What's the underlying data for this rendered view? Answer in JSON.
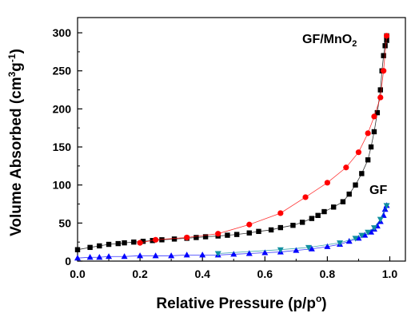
{
  "chart_data": {
    "type": "scatter",
    "xlabel_parts": [
      "Relative Pressure (p/p",
      "o",
      ")"
    ],
    "ylabel_parts": [
      "Volume Absorbed (cm",
      "3",
      "g",
      "-1",
      ")"
    ],
    "xlim": [
      0.0,
      1.05
    ],
    "ylim": [
      0,
      320
    ],
    "xticks": [
      "0.0",
      "0.2",
      "0.4",
      "0.6",
      "0.8",
      "1.0"
    ],
    "xtick_values": [
      0.0,
      0.2,
      0.4,
      0.6,
      0.8,
      1.0
    ],
    "yticks": [
      "0",
      "50",
      "100",
      "150",
      "200",
      "250",
      "300"
    ],
    "ytick_values": [
      0,
      50,
      100,
      150,
      200,
      250,
      300
    ],
    "grid": false,
    "annotations": [
      {
        "text_parts": [
          "GF/MnO",
          "2"
        ],
        "anchor": [
          0.99,
          296
        ]
      },
      {
        "text": "GF",
        "anchor": [
          0.99,
          82
        ]
      }
    ],
    "series": [
      {
        "color": "#000000",
        "marker": "square",
        "x": [
          0.0,
          0.04,
          0.07,
          0.1,
          0.13,
          0.15,
          0.18,
          0.21,
          0.24,
          0.27,
          0.31,
          0.35,
          0.38,
          0.41,
          0.45,
          0.48,
          0.51,
          0.55,
          0.58,
          0.62,
          0.65,
          0.69,
          0.72,
          0.75,
          0.77,
          0.79,
          0.82,
          0.85,
          0.87,
          0.89,
          0.91,
          0.93,
          0.94,
          0.95,
          0.96,
          0.97,
          0.975,
          0.98,
          0.985,
          0.99,
          0.99
        ],
        "y": [
          15,
          18,
          20,
          22,
          23,
          24,
          25,
          26,
          27,
          28,
          29,
          30,
          31,
          32,
          33,
          34,
          35,
          37,
          39,
          41,
          44,
          47,
          51,
          56,
          60,
          65,
          71,
          78,
          88,
          100,
          115,
          133,
          150,
          170,
          195,
          225,
          250,
          270,
          283,
          290,
          296
        ]
      },
      {
        "color": "#ff0000",
        "marker": "circle",
        "x": [
          0.2,
          0.25,
          0.35,
          0.45,
          0.55,
          0.65,
          0.73,
          0.8,
          0.86,
          0.9,
          0.93,
          0.95,
          0.97,
          0.98,
          0.99
        ],
        "y": [
          24,
          28,
          31,
          36,
          48,
          63,
          84,
          103,
          123,
          143,
          168,
          190,
          215,
          250,
          296
        ]
      },
      {
        "color": "#0000ff",
        "marker": "triangle-up",
        "x": [
          0.0,
          0.04,
          0.07,
          0.1,
          0.15,
          0.2,
          0.25,
          0.3,
          0.35,
          0.4,
          0.45,
          0.5,
          0.55,
          0.6,
          0.65,
          0.7,
          0.75,
          0.8,
          0.84,
          0.87,
          0.9,
          0.92,
          0.94,
          0.95,
          0.96,
          0.97,
          0.98,
          0.985,
          0.99
        ],
        "y": [
          4,
          5,
          5,
          6,
          6,
          7,
          7,
          7,
          8,
          8,
          8,
          9,
          10,
          11,
          12,
          14,
          16,
          19,
          22,
          26,
          30,
          34,
          38,
          42,
          46,
          52,
          60,
          68,
          73
        ]
      },
      {
        "color": "#0f8fa0",
        "marker": "triangle-down",
        "x": [
          0.45,
          0.65,
          0.74,
          0.84,
          0.89,
          0.91,
          0.93,
          0.95,
          0.97,
          0.99
        ],
        "y": [
          10,
          15,
          18,
          24,
          30,
          34,
          38,
          44,
          55,
          73
        ]
      }
    ]
  }
}
